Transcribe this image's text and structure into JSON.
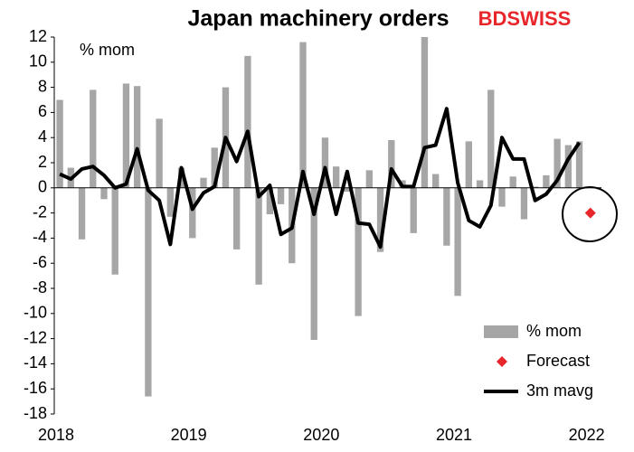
{
  "chart_data": {
    "type": "bar",
    "title": "Japan machinery orders",
    "logo": "BDSWISS",
    "annotation": "% mom",
    "categories": [
      "2018",
      null,
      null,
      null,
      null,
      null,
      null,
      null,
      null,
      null,
      null,
      null,
      "2019",
      null,
      null,
      null,
      null,
      null,
      null,
      null,
      null,
      null,
      null,
      null,
      "2020",
      null,
      null,
      null,
      null,
      null,
      null,
      null,
      null,
      null,
      null,
      null,
      "2021",
      null,
      null,
      null,
      null,
      null,
      null,
      null,
      null,
      null,
      null,
      null,
      "2022"
    ],
    "series": [
      {
        "name": "% mom",
        "type": "bar",
        "color": "#a6a6a6",
        "values": [
          7.0,
          1.6,
          -4.1,
          7.8,
          -0.9,
          -6.9,
          8.3,
          8.1,
          -16.6,
          5.5,
          -2.3,
          1.6,
          -4.0,
          0.8,
          3.2,
          8.0,
          -4.9,
          10.5,
          -7.7,
          -2.1,
          -1.3,
          -6.0,
          11.6,
          -12.1,
          4.0,
          1.7,
          -0.3,
          -10.2,
          1.4,
          -5.1,
          3.8,
          0.6,
          -3.6,
          12.0,
          1.1,
          -4.6,
          -8.6,
          3.7,
          0.6,
          7.8,
          -1.5,
          0.9,
          -2.5,
          0.1,
          1.0,
          3.9,
          3.4,
          3.7,
          null
        ]
      },
      {
        "name": "Forecast",
        "type": "point",
        "color": "#e8262a",
        "values": [
          null,
          null,
          null,
          null,
          null,
          null,
          null,
          null,
          null,
          null,
          null,
          null,
          null,
          null,
          null,
          null,
          null,
          null,
          null,
          null,
          null,
          null,
          null,
          null,
          null,
          null,
          null,
          null,
          null,
          null,
          null,
          null,
          null,
          null,
          null,
          null,
          null,
          null,
          null,
          null,
          null,
          null,
          null,
          null,
          null,
          null,
          null,
          null,
          -2.0
        ]
      },
      {
        "name": "3m mavg",
        "type": "line",
        "color": "#000000",
        "values": [
          1.1,
          0.7,
          1.5,
          1.7,
          1.0,
          0.0,
          0.3,
          3.1,
          -0.2,
          -1.0,
          -4.5,
          1.6,
          -1.7,
          -0.4,
          0.1,
          4.0,
          2.1,
          4.5,
          -0.7,
          0.2,
          -3.7,
          -3.2,
          1.3,
          -2.1,
          1.6,
          -2.1,
          1.3,
          -2.8,
          -2.9,
          -4.7,
          1.5,
          0.1,
          0.1,
          3.2,
          3.4,
          6.3,
          0.4,
          -2.6,
          -3.1,
          -1.4,
          4.0,
          2.3,
          2.3,
          -1.0,
          -0.5,
          0.6,
          2.3,
          3.6,
          null
        ]
      }
    ],
    "ylim": [
      -18,
      12
    ],
    "yticks": [
      -18,
      -16,
      -14,
      -12,
      -10,
      -8,
      -6,
      -4,
      -2,
      0,
      2,
      4,
      6,
      8,
      10,
      12
    ]
  }
}
